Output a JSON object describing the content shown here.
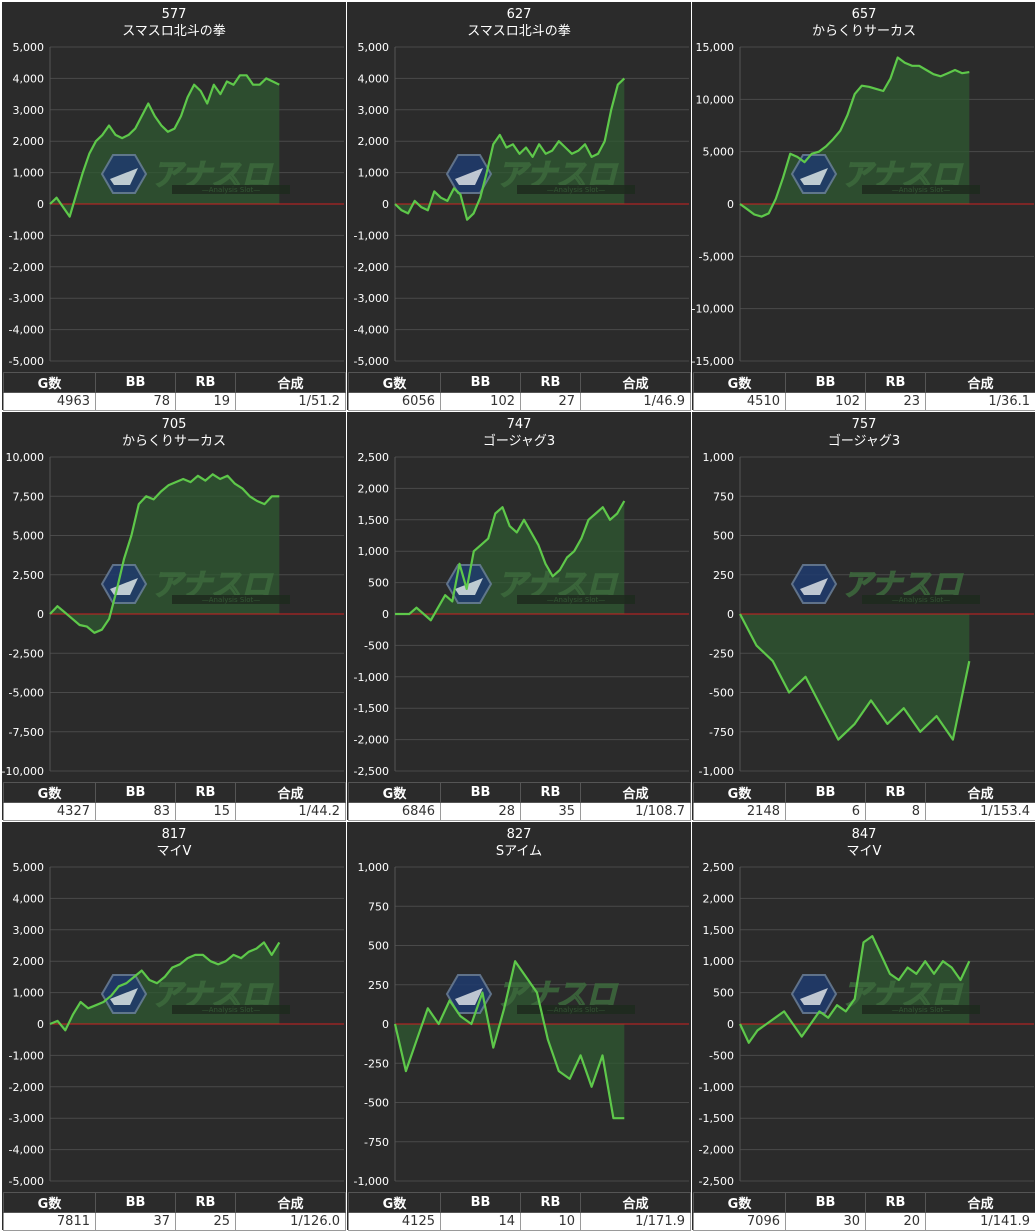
{
  "colors": {
    "panel_bg": "#2b2b2b",
    "line": "#5ec84a",
    "area": "#2f5a32",
    "zero_line": "#cc2222",
    "grid": "#4a4a4a"
  },
  "watermark": {
    "logo": "アナスロ",
    "tagline": "—Analysis Slot—"
  },
  "table_headers": {
    "g": "G数",
    "bb": "BB",
    "rb": "RB",
    "gousei": "合成"
  },
  "machines": [
    {
      "number": "577",
      "name": "スマスロ北斗の拳",
      "g": "4963",
      "bb": "78",
      "rb": "19",
      "gousei": "1/51.2"
    },
    {
      "number": "627",
      "name": "スマスロ北斗の拳",
      "g": "6056",
      "bb": "102",
      "rb": "27",
      "gousei": "1/46.9"
    },
    {
      "number": "657",
      "name": "からくりサーカス",
      "g": "4510",
      "bb": "102",
      "rb": "23",
      "gousei": "1/36.1"
    },
    {
      "number": "705",
      "name": "からくりサーカス",
      "g": "4327",
      "bb": "83",
      "rb": "15",
      "gousei": "1/44.2"
    },
    {
      "number": "747",
      "name": "ゴージャグ3",
      "g": "6846",
      "bb": "28",
      "rb": "35",
      "gousei": "1/108.7"
    },
    {
      "number": "757",
      "name": "ゴージャグ3",
      "g": "2148",
      "bb": "6",
      "rb": "8",
      "gousei": "1/153.4"
    },
    {
      "number": "817",
      "name": "マイV",
      "g": "7811",
      "bb": "37",
      "rb": "25",
      "gousei": "1/126.0"
    },
    {
      "number": "827",
      "name": "Sアイム",
      "g": "4125",
      "bb": "14",
      "rb": "10",
      "gousei": "1/171.9"
    },
    {
      "number": "847",
      "name": "マイV",
      "g": "7096",
      "bb": "30",
      "rb": "20",
      "gousei": "1/141.9"
    }
  ],
  "chart_data": [
    {
      "type": "area",
      "title": "577 スマスロ北斗の拳",
      "ylim": [
        -5000,
        5000
      ],
      "yticks": [
        "5,000",
        "4,000",
        "3,000",
        "2,000",
        "1,000",
        "0",
        "-1,000",
        "-2,000",
        "-3,000",
        "-4,000",
        "-5,000"
      ],
      "values": [
        0,
        200,
        -100,
        -400,
        300,
        1000,
        1600,
        2000,
        2200,
        2500,
        2200,
        2100,
        2200,
        2400,
        2800,
        3200,
        2800,
        2500,
        2300,
        2400,
        2800,
        3400,
        3800,
        3600,
        3200,
        3800,
        3500,
        3900,
        3800,
        4100,
        4100,
        3800,
        3800,
        4000,
        3900,
        3800
      ]
    },
    {
      "type": "area",
      "title": "627 スマスロ北斗の拳",
      "ylim": [
        -5000,
        5000
      ],
      "yticks": [
        "5,000",
        "4,000",
        "3,000",
        "2,000",
        "1,000",
        "0",
        "-1,000",
        "-2,000",
        "-3,000",
        "-4,000",
        "-5,000"
      ],
      "values": [
        0,
        -200,
        -300,
        100,
        -100,
        -200,
        400,
        200,
        100,
        500,
        300,
        -500,
        -300,
        200,
        1000,
        1900,
        2200,
        1800,
        1900,
        1600,
        1800,
        1500,
        1900,
        1600,
        1700,
        2000,
        1800,
        1600,
        1700,
        1900,
        1500,
        1600,
        2000,
        3000,
        3800,
        4000
      ]
    },
    {
      "type": "area",
      "title": "657 からくりサーカス",
      "ylim": [
        -15000,
        15000
      ],
      "yticks": [
        "15,000",
        "10,000",
        "5,000",
        "0",
        "-5,000",
        "-10,000",
        "-15,000"
      ],
      "values": [
        0,
        -500,
        -1000,
        -1200,
        -900,
        500,
        2500,
        4800,
        4500,
        4000,
        4800,
        5000,
        5500,
        6200,
        7000,
        8500,
        10500,
        11300,
        11200,
        11000,
        10800,
        12000,
        14000,
        13500,
        13200,
        13200,
        12800,
        12400,
        12200,
        12500,
        12800,
        12500,
        12600
      ]
    },
    {
      "type": "area",
      "title": "705 からくりサーカス",
      "ylim": [
        -10000,
        10000
      ],
      "yticks": [
        "10,000",
        "7,500",
        "5,000",
        "2,500",
        "0",
        "-2,500",
        "-5,000",
        "-7,500",
        "-10,000"
      ],
      "values": [
        0,
        500,
        100,
        -300,
        -700,
        -800,
        -1200,
        -1000,
        -300,
        1500,
        3500,
        5000,
        7000,
        7500,
        7300,
        7800,
        8200,
        8400,
        8600,
        8400,
        8800,
        8500,
        8900,
        8600,
        8800,
        8300,
        8000,
        7500,
        7200,
        7000,
        7500,
        7500
      ]
    },
    {
      "type": "area",
      "title": "747 ゴージャグ3",
      "ylim": [
        -2500,
        2500
      ],
      "yticks": [
        "2,500",
        "2,000",
        "1,500",
        "1,000",
        "500",
        "0",
        "-500",
        "-1,000",
        "-1,500",
        "-2,000",
        "-2,500"
      ],
      "values": [
        0,
        0,
        0,
        100,
        0,
        -100,
        100,
        300,
        200,
        800,
        400,
        1000,
        1100,
        1200,
        1600,
        1700,
        1400,
        1300,
        1500,
        1300,
        1100,
        800,
        600,
        700,
        900,
        1000,
        1200,
        1500,
        1600,
        1700,
        1500,
        1600,
        1800
      ]
    },
    {
      "type": "area",
      "title": "757 ゴージャグ3",
      "ylim": [
        -1000,
        1000
      ],
      "yticks": [
        "1,000",
        "750",
        "500",
        "250",
        "0",
        "-250",
        "-500",
        "-750",
        "-1,000"
      ],
      "values": [
        0,
        -200,
        -300,
        -500,
        -400,
        -600,
        -800,
        -700,
        -550,
        -700,
        -600,
        -750,
        -650,
        -800,
        -300
      ]
    },
    {
      "type": "area",
      "title": "817 マイV",
      "ylim": [
        -5000,
        5000
      ],
      "yticks": [
        "5,000",
        "4,000",
        "3,000",
        "2,000",
        "1,000",
        "0",
        "-1,000",
        "-2,000",
        "-3,000",
        "-4,000",
        "-5,000"
      ],
      "values": [
        0,
        100,
        -200,
        300,
        700,
        500,
        600,
        700,
        900,
        1200,
        1300,
        1500,
        1700,
        1400,
        1300,
        1500,
        1800,
        1900,
        2100,
        2200,
        2200,
        2000,
        1900,
        2000,
        2200,
        2100,
        2300,
        2400,
        2600,
        2200,
        2600
      ]
    },
    {
      "type": "area",
      "title": "827 Sアイム",
      "ylim": [
        -1000,
        1000
      ],
      "yticks": [
        "1,000",
        "750",
        "500",
        "250",
        "0",
        "-250",
        "-500",
        "-750",
        "-1,000"
      ],
      "values": [
        0,
        -300,
        -100,
        100,
        0,
        150,
        50,
        0,
        200,
        -150,
        100,
        400,
        300,
        200,
        -100,
        -300,
        -350,
        -200,
        -400,
        -200,
        -600,
        -600
      ]
    },
    {
      "type": "area",
      "title": "847 マイV",
      "ylim": [
        -2500,
        2500
      ],
      "yticks": [
        "2,500",
        "2,000",
        "1,500",
        "1,000",
        "500",
        "0",
        "-500",
        "-1,000",
        "-1,500",
        "-2,000",
        "-2,500"
      ],
      "values": [
        0,
        -300,
        -100,
        0,
        100,
        200,
        0,
        -200,
        0,
        200,
        100,
        300,
        200,
        400,
        1300,
        1400,
        1100,
        800,
        700,
        900,
        800,
        1000,
        800,
        1000,
        900,
        700,
        1000
      ]
    }
  ]
}
